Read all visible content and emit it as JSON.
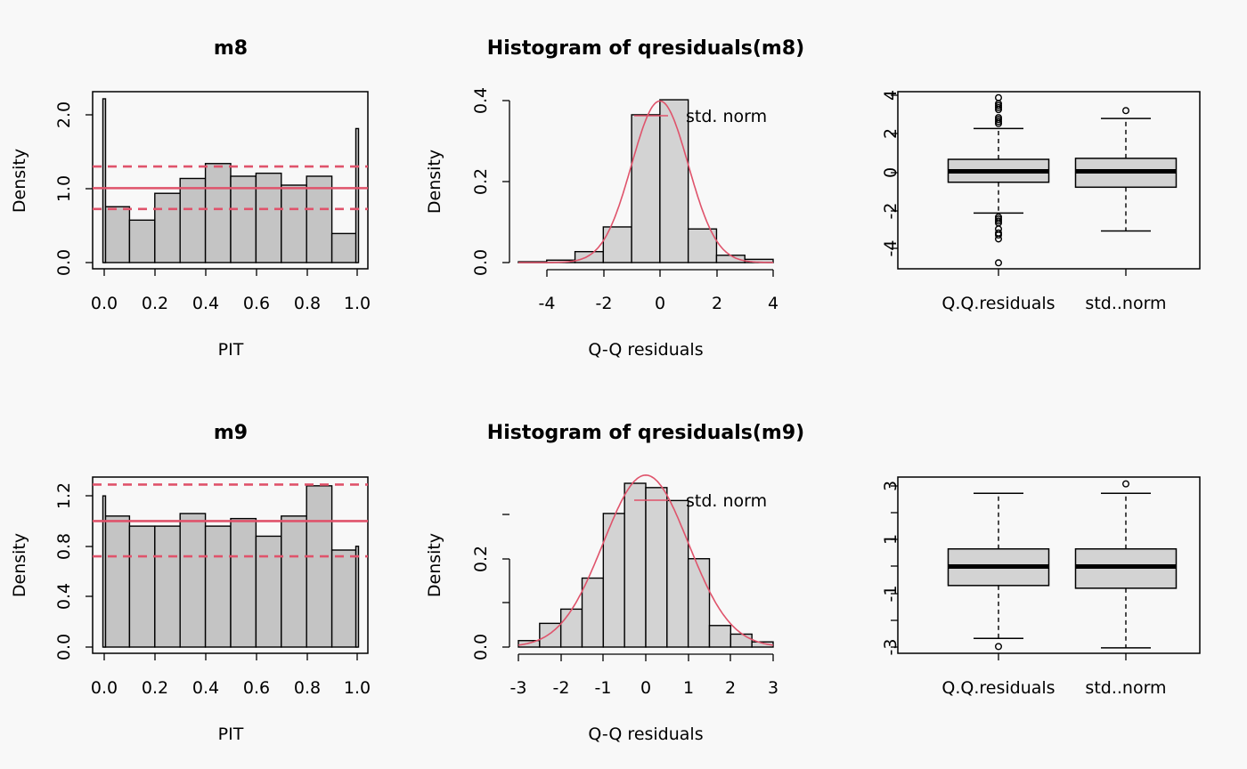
{
  "chart_data": [
    {
      "type": "bar",
      "title": "m8",
      "xlabel": "PIT",
      "ylabel": "Density",
      "xlim": [
        0,
        1
      ],
      "ylim": [
        0,
        2.2
      ],
      "xticks": [
        "0.0",
        "0.2",
        "0.4",
        "0.6",
        "0.8",
        "1.0"
      ],
      "yticks": [
        "0.0",
        "1.0",
        "2.0"
      ],
      "bins": [
        [
          0.1,
          0.75
        ],
        [
          0.2,
          0.57
        ],
        [
          0.3,
          0.93
        ],
        [
          0.4,
          1.13
        ],
        [
          0.5,
          1.33
        ],
        [
          0.6,
          1.16
        ],
        [
          0.7,
          1.2
        ],
        [
          0.8,
          1.04
        ],
        [
          0.9,
          1.16
        ],
        [
          1.0,
          0.39
        ]
      ],
      "edge_bars": [
        [
          0,
          2.2
        ],
        [
          1,
          1.8
        ]
      ],
      "ref_lines": {
        "solid": 1.0,
        "dashed": [
          0.72,
          1.29
        ]
      },
      "colors": {
        "bar": "#c4c4c4",
        "ref": "#df536b"
      }
    },
    {
      "type": "bar",
      "title": "Histogram of qresiduals(m8)",
      "xlabel": "Q-Q residuals",
      "ylabel": "Density",
      "xlim": [
        -5,
        4
      ],
      "ylim": [
        0,
        0.4
      ],
      "xticks": [
        "-4",
        "-2",
        "0",
        "2",
        "4"
      ],
      "yticks": [
        "0.0",
        "0.2",
        "0.4"
      ],
      "bins": [
        [
          -5,
          -4,
          0.002
        ],
        [
          -4,
          -3,
          0.006
        ],
        [
          -3,
          -2,
          0.027
        ],
        [
          -2,
          -1,
          0.088
        ],
        [
          -1,
          0,
          0.365
        ],
        [
          0,
          1,
          0.402
        ],
        [
          1,
          2,
          0.083
        ],
        [
          2,
          3,
          0.018
        ],
        [
          3,
          4,
          0.008
        ]
      ],
      "legend": "std. norm",
      "colors": {
        "bar": "#d3d3d3",
        "curve": "#df536b"
      }
    },
    {
      "type": "box",
      "categories": [
        "Q.Q.residuals",
        "std..norm"
      ],
      "ylim": [
        -4.9,
        4
      ],
      "yticks": [
        "-4",
        "-2",
        "0",
        "2",
        "4"
      ],
      "boxes": [
        {
          "q1": -0.55,
          "median": 0.0,
          "q3": 0.6,
          "whisker_low": -2.1,
          "whisker_high": 2.15,
          "outliers": [
            3.7,
            3.4,
            3.3,
            3.2,
            3.1,
            2.7,
            2.6,
            2.5,
            2.4,
            -2.3,
            -2.4,
            -2.5,
            -2.6,
            -2.9,
            -3.1,
            -3.2,
            -3.4,
            -4.6
          ]
        },
        {
          "q1": -0.8,
          "median": 0.0,
          "q3": 0.65,
          "whisker_low": -3.0,
          "whisker_high": 2.65,
          "outliers": [
            3.05
          ]
        }
      ],
      "colors": {
        "box": "#d3d3d3"
      }
    },
    {
      "type": "bar",
      "title": "m9",
      "xlabel": "PIT",
      "ylabel": "Density",
      "xlim": [
        0,
        1
      ],
      "ylim": [
        0,
        1.3
      ],
      "xticks": [
        "0.0",
        "0.2",
        "0.4",
        "0.6",
        "0.8",
        "1.0"
      ],
      "yticks": [
        "0.0",
        "0.4",
        "0.8",
        "1.2"
      ],
      "bins": [
        [
          0.1,
          1.04
        ],
        [
          0.2,
          0.96
        ],
        [
          0.3,
          0.96
        ],
        [
          0.4,
          1.06
        ],
        [
          0.5,
          0.96
        ],
        [
          0.6,
          1.02
        ],
        [
          0.7,
          0.88
        ],
        [
          0.8,
          1.04
        ],
        [
          0.9,
          1.28
        ],
        [
          1.0,
          0.77
        ]
      ],
      "edge_bars": [
        [
          0,
          1.2
        ],
        [
          1,
          0.8
        ]
      ],
      "ref_lines": {
        "solid": 1.0,
        "dashed": [
          0.72,
          1.29
        ]
      },
      "colors": {
        "bar": "#c4c4c4",
        "ref": "#df536b"
      }
    },
    {
      "type": "bar",
      "title": "Histogram of qresiduals(m9)",
      "xlabel": "Q-Q residuals",
      "ylabel": "Density",
      "xlim": [
        -3,
        3
      ],
      "ylim": [
        0,
        0.38
      ],
      "xticks": [
        "-3",
        "-2",
        "-1",
        "0",
        "1",
        "2",
        "3"
      ],
      "yticks": [
        "0.0",
        "0.2"
      ],
      "bins": [
        [
          -3,
          -2.5,
          0.015
        ],
        [
          -2.5,
          -2,
          0.055
        ],
        [
          -2,
          -1.5,
          0.088
        ],
        [
          -1.5,
          -1,
          0.16
        ],
        [
          -1,
          -0.5,
          0.31
        ],
        [
          -0.5,
          0,
          0.38
        ],
        [
          0,
          0.5,
          0.37
        ],
        [
          0.5,
          1,
          0.34
        ],
        [
          1,
          1.5,
          0.205
        ],
        [
          1.5,
          2,
          0.05
        ],
        [
          2,
          2.5,
          0.03
        ],
        [
          2.5,
          3,
          0.012
        ]
      ],
      "legend": "std. norm",
      "colors": {
        "bar": "#d3d3d3",
        "curve": "#df536b"
      }
    },
    {
      "type": "box",
      "categories": [
        "Q.Q.residuals",
        "std..norm"
      ],
      "ylim": [
        -3.2,
        3.3
      ],
      "yticks": [
        "-3",
        "",
        "-1",
        "",
        "1",
        "",
        "3"
      ],
      "boxes": [
        {
          "q1": -0.7,
          "median": 0.0,
          "q3": 0.65,
          "whisker_low": -2.65,
          "whisker_high": 2.7,
          "outliers": [
            -2.95
          ]
        },
        {
          "q1": -0.8,
          "median": 0.0,
          "q3": 0.65,
          "whisker_low": -3.0,
          "whisker_high": 2.7,
          "outliers": [
            3.05
          ]
        }
      ],
      "colors": {
        "box": "#d3d3d3"
      }
    }
  ]
}
